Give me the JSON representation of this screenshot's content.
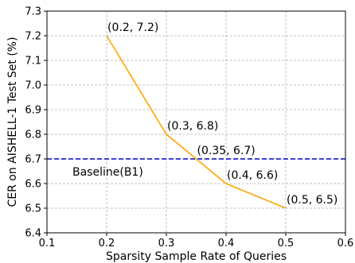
{
  "chart_data": {
    "type": "line",
    "xlabel": "Sparsity Sample Rate of Queries",
    "ylabel": "CER on AISHELL-1 Test Set (%)",
    "xlim": [
      0.1,
      0.6
    ],
    "ylim": [
      6.4,
      7.3
    ],
    "x_ticks": [
      "0.1",
      "0.2",
      "0.3",
      "0.4",
      "0.5",
      "0.6"
    ],
    "y_ticks": [
      "6.4",
      "6.5",
      "6.6",
      "6.7",
      "6.8",
      "6.9",
      "7.0",
      "7.1",
      "7.2",
      "7.3"
    ],
    "grid": true,
    "series": [
      {
        "color": "#ffa500",
        "points": [
          {
            "x": 0.2,
            "y": 7.2,
            "label": "(0.2, 7.2)"
          },
          {
            "x": 0.3,
            "y": 6.8,
            "label": "(0.3, 6.8)"
          },
          {
            "x": 0.35,
            "y": 6.7,
            "label": "(0.35, 6.7)"
          },
          {
            "x": 0.4,
            "y": 6.6,
            "label": "(0.4, 6.6)"
          },
          {
            "x": 0.5,
            "y": 6.5,
            "label": "(0.5, 6.5)"
          }
        ]
      }
    ],
    "baseline": {
      "name": "Baseline(B1)",
      "y": 6.7,
      "color": "#0000cc",
      "style": "dashed"
    }
  }
}
